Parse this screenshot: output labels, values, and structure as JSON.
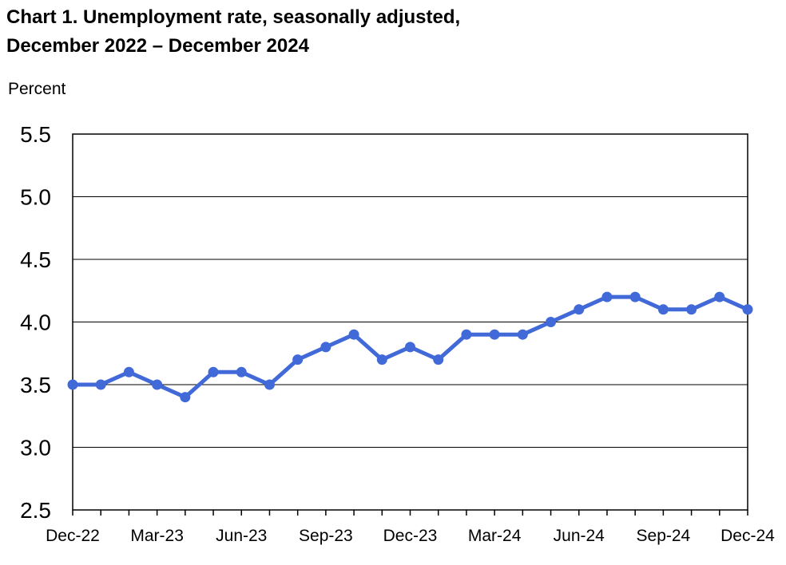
{
  "chart_data": {
    "type": "line",
    "title": [
      "Chart 1. Unemployment rate, seasonally adjusted,",
      "December 2022 – December 2024"
    ],
    "y_label": "Percent",
    "categories": [
      "Dec-22",
      null,
      null,
      "Mar-23",
      null,
      null,
      "Jun-23",
      null,
      null,
      "Sep-23",
      null,
      null,
      "Dec-23",
      null,
      null,
      "Mar-24",
      null,
      null,
      "Jun-24",
      null,
      null,
      "Sep-24",
      null,
      null,
      "Dec-24"
    ],
    "series": [
      {
        "color": "#4169d8",
        "values": [
          3.5,
          3.5,
          3.6,
          3.5,
          3.4,
          3.6,
          3.6,
          3.5,
          3.7,
          3.8,
          3.9,
          3.7,
          3.8,
          3.7,
          3.9,
          3.9,
          3.9,
          4.0,
          4.1,
          4.2,
          4.2,
          4.1,
          4.1,
          4.2,
          4.1
        ]
      }
    ],
    "ylim": [
      2.5,
      5.5
    ],
    "yticks": [
      2.5,
      {
        "value": 3,
        "label": "3.0"
      },
      3.5,
      {
        "value": 4,
        "label": "4.0"
      },
      4.5,
      {
        "value": 5,
        "label": "5.0"
      },
      5.5
    ],
    "grid": true
  }
}
